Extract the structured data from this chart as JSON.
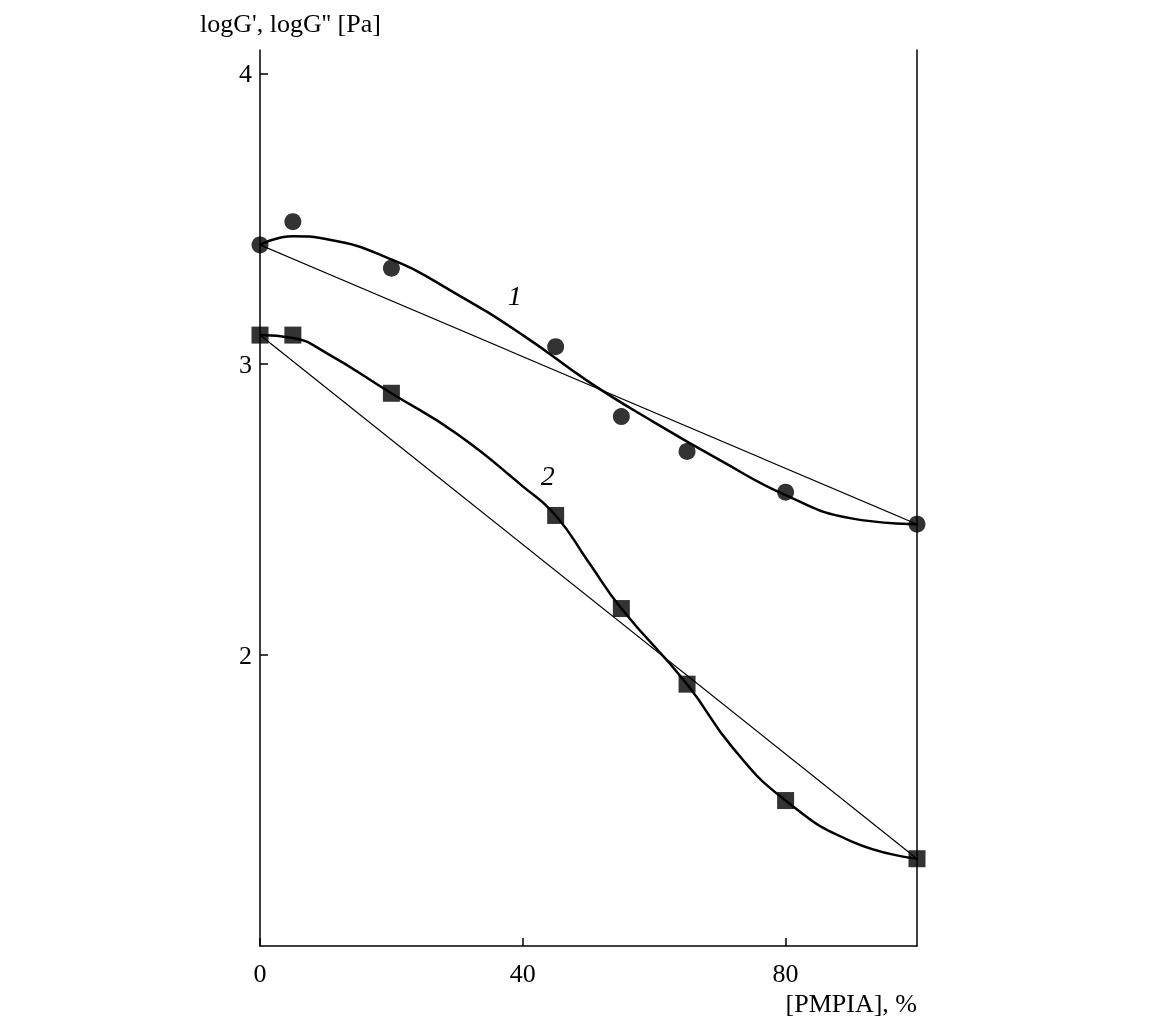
{
  "chart_data": {
    "type": "scatter",
    "xlabel": "[PMPIA], %",
    "ylabel": "logG', logG'' [Pa]",
    "xlim": [
      0,
      100
    ],
    "xticks": [
      0,
      40,
      80
    ],
    "ylim": [
      1,
      4.08
    ],
    "yticks": [
      2,
      3,
      4
    ],
    "grid": false,
    "annotations": [
      "1",
      "2"
    ],
    "series": [
      {
        "marker": "circle",
        "color": "#000000",
        "x": [
          0,
          5,
          20,
          45,
          55,
          65,
          80,
          100
        ],
        "values": [
          3.41,
          3.49,
          3.33,
          3.06,
          2.82,
          2.7,
          2.56,
          2.45
        ]
      },
      {
        "marker": "square",
        "color": "#000000",
        "x": [
          0,
          5,
          20,
          45,
          55,
          65,
          80,
          100
        ],
        "values": [
          3.1,
          3.1,
          2.9,
          2.48,
          2.16,
          1.9,
          1.5,
          1.3
        ]
      },
      {
        "type": "line",
        "marker": "none",
        "line_style": "solid",
        "color": "#000000",
        "x": [
          0,
          5,
          10,
          20,
          30,
          40,
          50,
          60,
          70,
          80,
          90,
          100
        ],
        "values": [
          3.41,
          3.44,
          3.43,
          3.36,
          3.24,
          3.1,
          2.94,
          2.8,
          2.67,
          2.55,
          2.47,
          2.45
        ]
      },
      {
        "type": "line",
        "marker": "none",
        "line_style": "solid",
        "color": "#000000",
        "x": [
          0,
          5,
          10,
          20,
          30,
          40,
          45,
          50,
          55,
          65,
          72,
          80,
          90,
          100
        ],
        "values": [
          3.1,
          3.09,
          3.04,
          2.9,
          2.76,
          2.58,
          2.48,
          2.32,
          2.16,
          1.9,
          1.68,
          1.5,
          1.36,
          1.3
        ]
      },
      {
        "type": "line",
        "marker": "none",
        "line_style": "solid",
        "color": "#000000",
        "x": [
          0,
          100
        ],
        "values": [
          3.41,
          2.45
        ]
      },
      {
        "type": "line",
        "marker": "none",
        "line_style": "solid",
        "color": "#000000",
        "x": [
          0,
          100
        ],
        "values": [
          3.1,
          1.3
        ]
      }
    ]
  }
}
